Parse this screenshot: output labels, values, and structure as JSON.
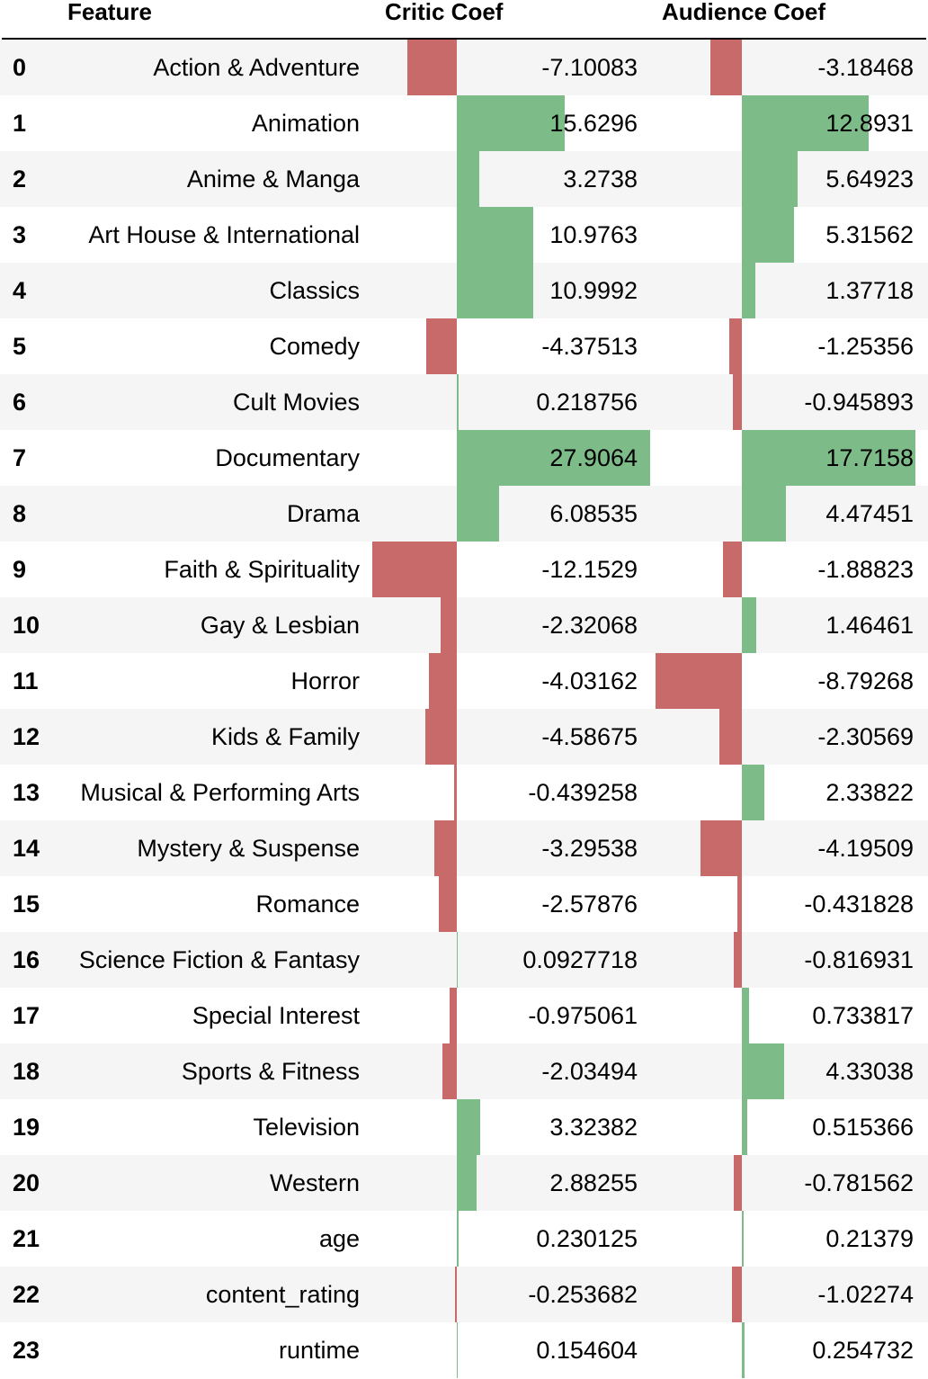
{
  "chart_data": {
    "type": "table",
    "columns": [
      "",
      "Feature",
      "Critic Coef",
      "Audience Coef"
    ],
    "bar_colors": {
      "positive": "#7dbc89",
      "negative": "#c96a6a"
    },
    "rows": [
      {
        "index": "0",
        "feature": "Action & Adventure",
        "critic": "-7.10083",
        "audience": "-3.18468"
      },
      {
        "index": "1",
        "feature": "Animation",
        "critic": "15.6296",
        "audience": "12.8931"
      },
      {
        "index": "2",
        "feature": "Anime & Manga",
        "critic": "3.2738",
        "audience": "5.64923"
      },
      {
        "index": "3",
        "feature": "Art House & International",
        "critic": "10.9763",
        "audience": "5.31562"
      },
      {
        "index": "4",
        "feature": "Classics",
        "critic": "10.9992",
        "audience": "1.37718"
      },
      {
        "index": "5",
        "feature": "Comedy",
        "critic": "-4.37513",
        "audience": "-1.25356"
      },
      {
        "index": "6",
        "feature": "Cult Movies",
        "critic": "0.218756",
        "audience": "-0.945893"
      },
      {
        "index": "7",
        "feature": "Documentary",
        "critic": "27.9064",
        "audience": "17.7158"
      },
      {
        "index": "8",
        "feature": "Drama",
        "critic": "6.08535",
        "audience": "4.47451"
      },
      {
        "index": "9",
        "feature": "Faith & Spirituality",
        "critic": "-12.1529",
        "audience": "-1.88823"
      },
      {
        "index": "10",
        "feature": "Gay & Lesbian",
        "critic": "-2.32068",
        "audience": "1.46461"
      },
      {
        "index": "11",
        "feature": "Horror",
        "critic": "-4.03162",
        "audience": "-8.79268"
      },
      {
        "index": "12",
        "feature": "Kids & Family",
        "critic": "-4.58675",
        "audience": "-2.30569"
      },
      {
        "index": "13",
        "feature": "Musical & Performing Arts",
        "critic": "-0.439258",
        "audience": "2.33822"
      },
      {
        "index": "14",
        "feature": "Mystery & Suspense",
        "critic": "-3.29538",
        "audience": "-4.19509"
      },
      {
        "index": "15",
        "feature": "Romance",
        "critic": "-2.57876",
        "audience": "-0.431828"
      },
      {
        "index": "16",
        "feature": "Science Fiction & Fantasy",
        "critic": "0.0927718",
        "audience": "-0.816931"
      },
      {
        "index": "17",
        "feature": "Special Interest",
        "critic": "-0.975061",
        "audience": "0.733817"
      },
      {
        "index": "18",
        "feature": "Sports & Fitness",
        "critic": "-2.03494",
        "audience": "4.33038"
      },
      {
        "index": "19",
        "feature": "Television",
        "critic": "3.32382",
        "audience": "0.515366"
      },
      {
        "index": "20",
        "feature": "Western",
        "critic": "2.88255",
        "audience": "-0.781562"
      },
      {
        "index": "21",
        "feature": "age",
        "critic": "0.230125",
        "audience": "0.21379"
      },
      {
        "index": "22",
        "feature": "content_rating",
        "critic": "-0.253682",
        "audience": "-1.02274"
      },
      {
        "index": "23",
        "feature": "runtime",
        "critic": "0.154604",
        "audience": "0.254732"
      }
    ]
  }
}
